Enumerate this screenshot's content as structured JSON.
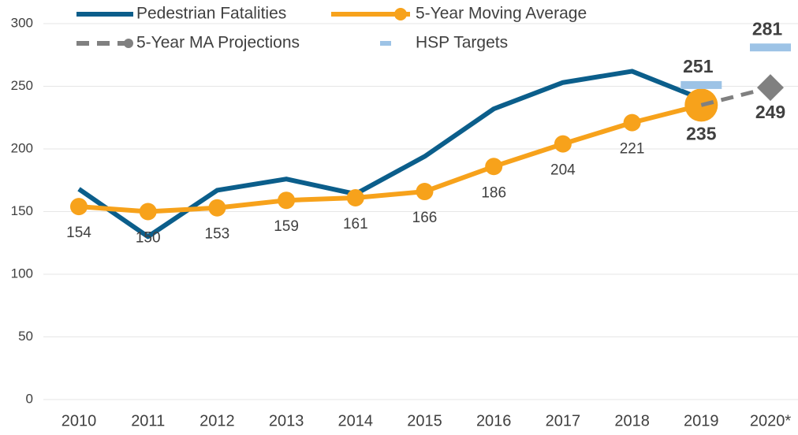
{
  "chart_data": {
    "type": "line",
    "categories": [
      "2010",
      "2011",
      "2012",
      "2013",
      "2014",
      "2015",
      "2016",
      "2017",
      "2018",
      "2019",
      "2020*"
    ],
    "ylim": [
      0,
      300
    ],
    "yticks": [
      0,
      50,
      100,
      150,
      200,
      250,
      300
    ],
    "grid": true,
    "series": [
      {
        "name": "Pedestrian Fatalities",
        "color": "#0b5e8b",
        "style": "line",
        "values": [
          168,
          130,
          167,
          176,
          164,
          194,
          232,
          253,
          262,
          240,
          null
        ]
      },
      {
        "name": "5-Year Moving Average",
        "color": "#f7a21b",
        "style": "line-dots",
        "data_labels": true,
        "values": [
          154,
          150,
          153,
          159,
          161,
          166,
          186,
          204,
          221,
          235,
          null
        ]
      },
      {
        "name": "5-Year MA Projections",
        "color": "#808080",
        "style": "dashed-diamond",
        "data_labels": true,
        "values": [
          null,
          null,
          null,
          null,
          null,
          null,
          null,
          null,
          null,
          235,
          249
        ]
      },
      {
        "name": "HSP Targets",
        "color": "#9dc3e6",
        "style": "target",
        "data_labels": true,
        "values": [
          null,
          null,
          null,
          null,
          null,
          null,
          null,
          null,
          null,
          251,
          281
        ]
      }
    ]
  }
}
